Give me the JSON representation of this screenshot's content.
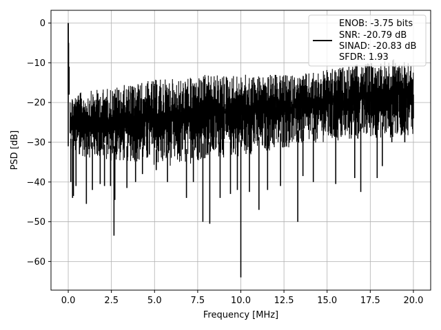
{
  "chart_data": {
    "type": "line",
    "xlabel": "Frequency [MHz]",
    "ylabel": "PSD [dB]",
    "xlim": [
      -1.0,
      21.0
    ],
    "ylim": [
      -67.2,
      3.2
    ],
    "xticks": [
      0.0,
      2.5,
      5.0,
      7.5,
      10.0,
      12.5,
      15.0,
      17.5,
      20.0
    ],
    "xtick_labels": [
      "0.0",
      "2.5",
      "5.0",
      "7.5",
      "10.0",
      "12.5",
      "15.0",
      "17.5",
      "20.0"
    ],
    "yticks": [
      0,
      -10,
      -20,
      -30,
      -40,
      -50,
      -60
    ],
    "ytick_labels": [
      "0",
      "−10",
      "−20",
      "−30",
      "−40",
      "−50",
      "−60"
    ],
    "grid": true,
    "legend_position": "top-right",
    "series": [
      {
        "color": "#000000",
        "noise_band_min": [
          -33,
          -34,
          -35,
          -35,
          -36,
          -36,
          -34,
          -34,
          -33,
          -32,
          -31,
          -30,
          -30,
          -29,
          -29,
          -28
        ],
        "noise_band_max": [
          -18,
          -17,
          -16,
          -15,
          -14,
          -14,
          -13,
          -13,
          -13,
          -13,
          -13,
          -12,
          -11,
          -10,
          -9,
          -9
        ],
        "band_x": [
          0.0,
          1.33,
          2.67,
          4.0,
          5.33,
          6.67,
          8.0,
          9.33,
          10.67,
          12.0,
          13.33,
          14.67,
          16.0,
          17.33,
          18.67,
          20.0
        ],
        "x": [
          0.0,
          0.02,
          0.05,
          0.1,
          0.15,
          0.25,
          0.3,
          0.45,
          0.65,
          1.05,
          1.4,
          1.85,
          2.1,
          2.45,
          2.65,
          2.7,
          3.4,
          3.9,
          4.3,
          5.1,
          5.75,
          6.85,
          7.25,
          7.8,
          8.2,
          8.8,
          9.4,
          9.8,
          10.0,
          10.5,
          11.05,
          11.55,
          12.3,
          13.3,
          13.6,
          14.2,
          15.5,
          16.6,
          16.95,
          17.9,
          18.2,
          18.75,
          19.5,
          20.0
        ],
        "y": [
          0.0,
          -5.0,
          -11.0,
          -18.0,
          -40.0,
          -44.0,
          -43.5,
          -41.0,
          -33.0,
          -45.5,
          -42.0,
          -40.5,
          -41.0,
          -41.0,
          -53.5,
          -44.5,
          -41.5,
          -40.0,
          -38.0,
          -37.0,
          -40.0,
          -44.0,
          -40.0,
          -50.0,
          -50.5,
          -44.0,
          -43.0,
          -42.0,
          -64.0,
          -42.5,
          -47.0,
          -42.0,
          -41.0,
          -50.0,
          -38.5,
          -40.0,
          -40.5,
          -39.0,
          -42.5,
          -39.0,
          -36.0,
          -30.0,
          -30.0,
          -18.0
        ],
        "name": ""
      }
    ],
    "legend_entries": [
      "ENOB: -3.75 bits",
      "SNR: -20.79 dB",
      "SINAD: -20.83 dB",
      "SFDR: 1.93"
    ]
  }
}
